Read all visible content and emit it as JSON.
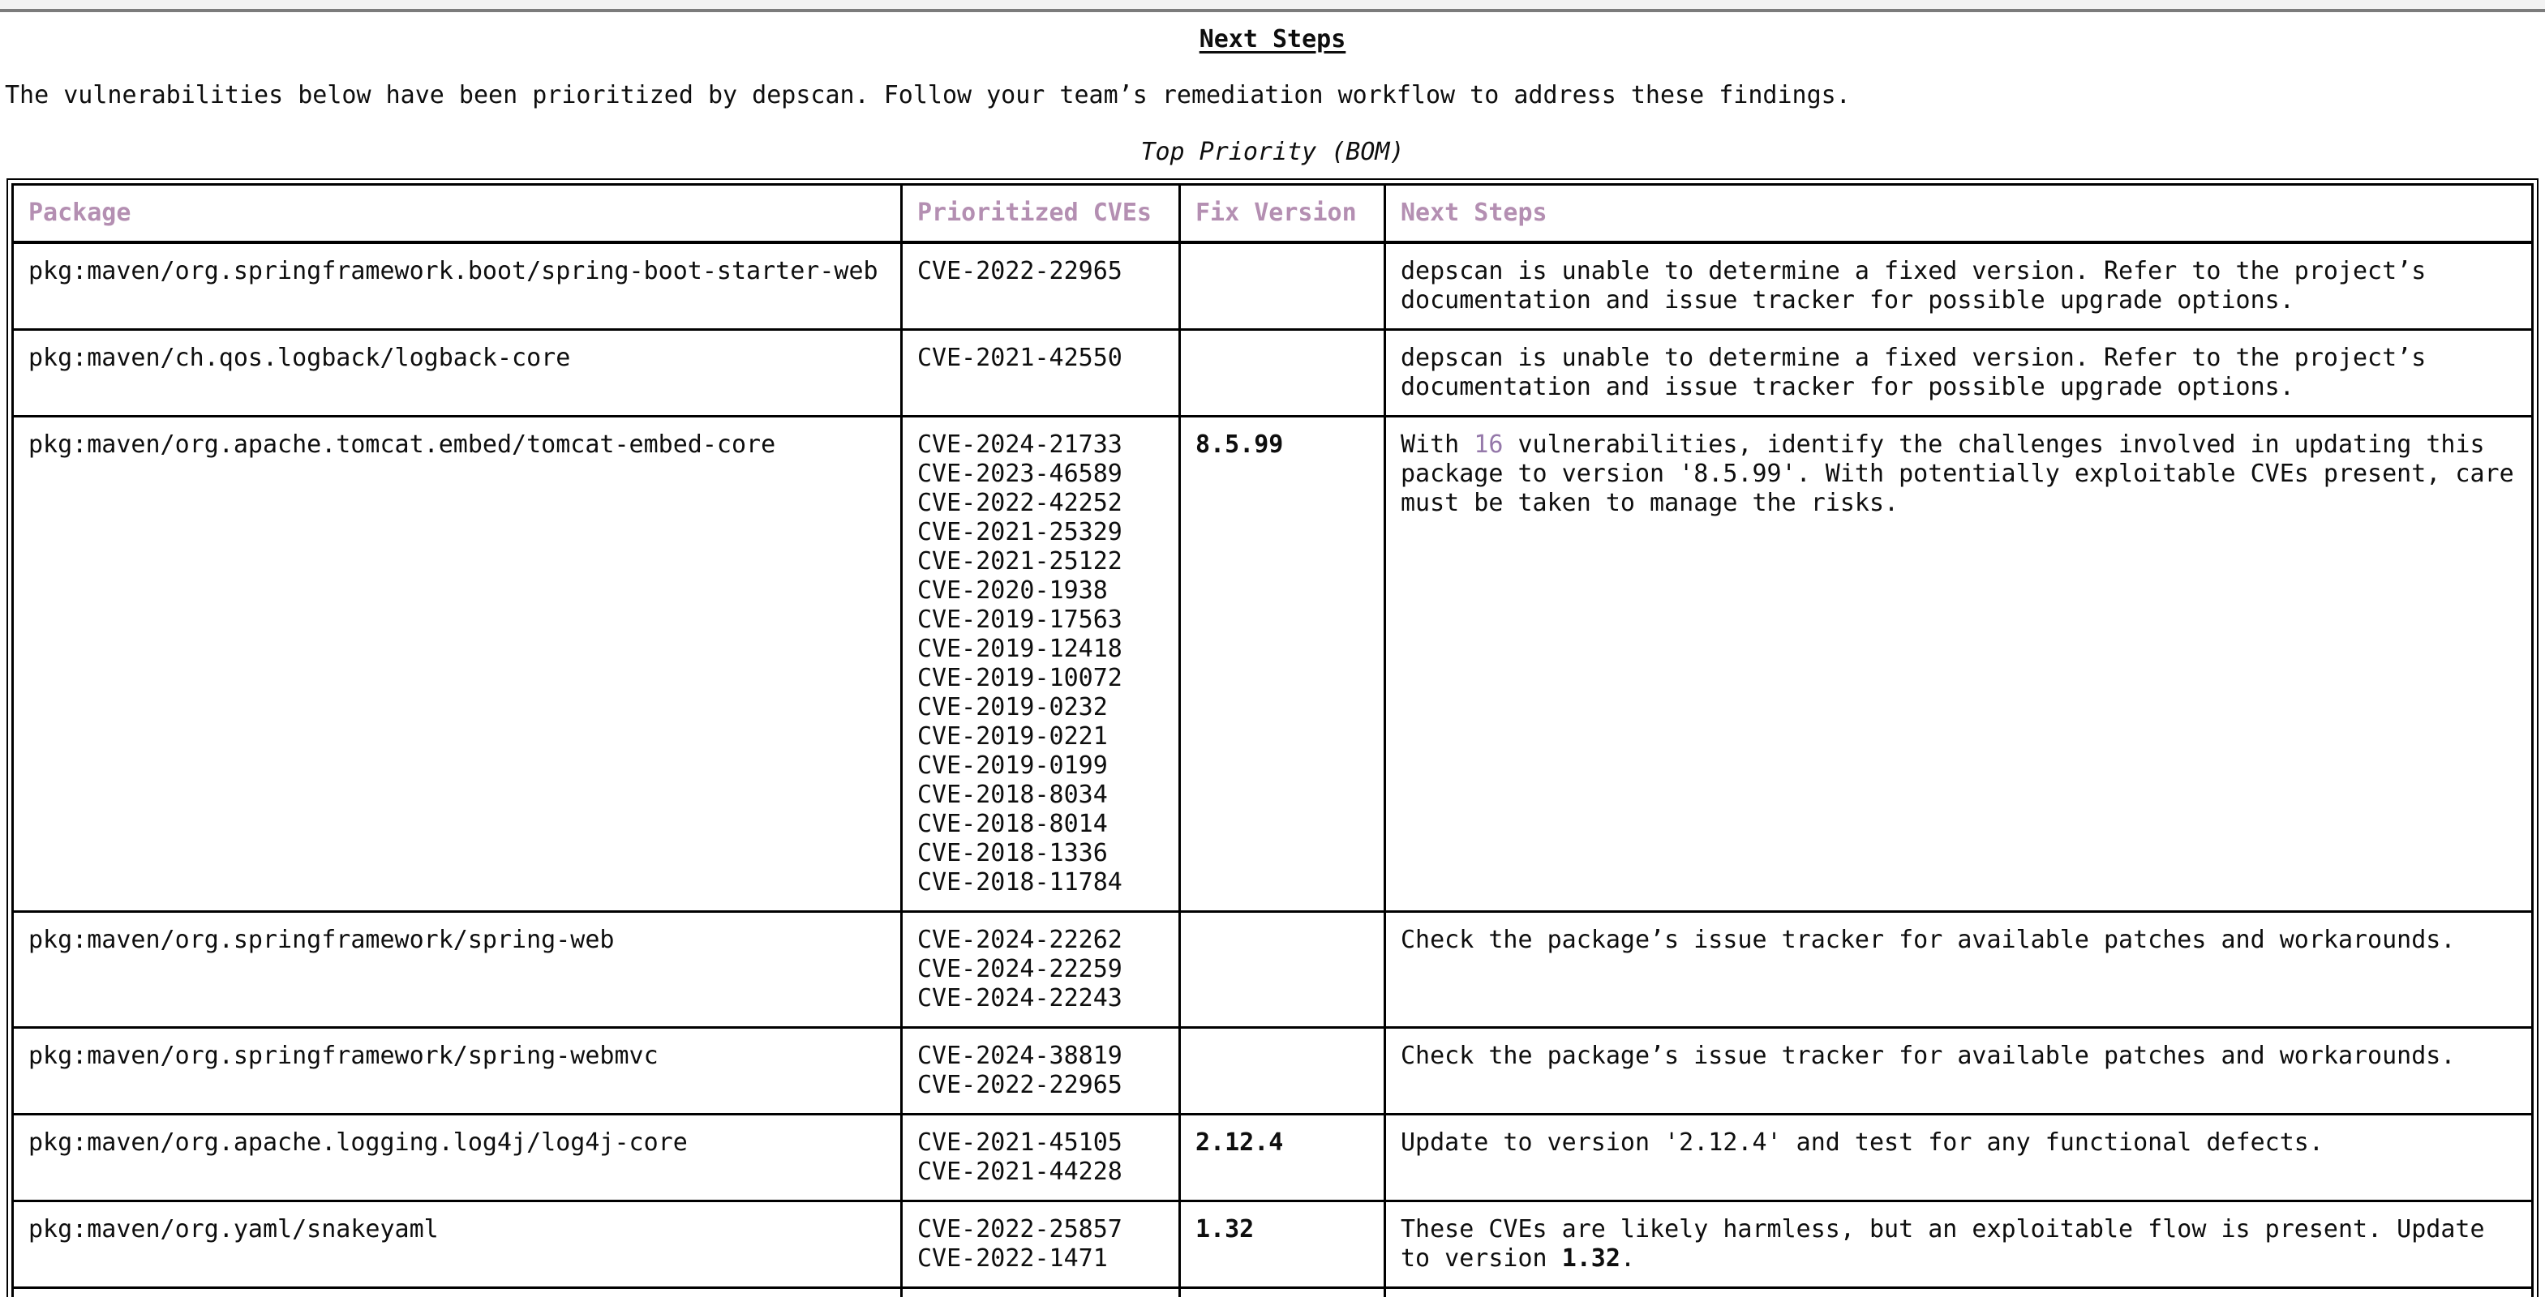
{
  "page": {
    "title": "Next Steps",
    "intro": "The vulnerabilities below have been prioritized by depscan. Follow your team’s remediation workflow to address these findings.",
    "table_caption": "Top Priority (BOM)"
  },
  "colors": {
    "header_text": "#b48fb2",
    "accent_text": "#9579aa",
    "top_strip": "#f2f2f2",
    "top_line": "#7c7c7c",
    "border": "#000000"
  },
  "table": {
    "headers": [
      "Package",
      "Prioritized CVEs",
      "Fix Version",
      "Next Steps"
    ],
    "rows": [
      {
        "package": "pkg:maven/org.springframework.boot/spring-boot-starter-web",
        "cves": [
          "CVE-2022-22965"
        ],
        "fix_version": "",
        "next_steps": [
          {
            "text": "depscan is unable to determine a fixed version. Refer to the project’s\ndocumentation and issue tracker for possible upgrade options."
          }
        ]
      },
      {
        "package": "pkg:maven/ch.qos.logback/logback-core",
        "cves": [
          "CVE-2021-42550"
        ],
        "fix_version": "",
        "next_steps": [
          {
            "text": "depscan is unable to determine a fixed version. Refer to the project’s\ndocumentation and issue tracker for possible upgrade options."
          }
        ]
      },
      {
        "package": "pkg:maven/org.apache.tomcat.embed/tomcat-embed-core",
        "cves": [
          "CVE-2024-21733",
          "CVE-2023-46589",
          "CVE-2022-42252",
          "CVE-2021-25329",
          "CVE-2021-25122",
          "CVE-2020-1938",
          "CVE-2019-17563",
          "CVE-2019-12418",
          "CVE-2019-10072",
          "CVE-2019-0232",
          "CVE-2019-0221",
          "CVE-2019-0199",
          "CVE-2018-8034",
          "CVE-2018-8014",
          "CVE-2018-1336",
          "CVE-2018-11784"
        ],
        "fix_version": "8.5.99",
        "next_steps": [
          {
            "text": "With "
          },
          {
            "text": "16",
            "style": "accent"
          },
          {
            "text": " vulnerabilities, identify the challenges involved in updating this\npackage to version '8.5.99'. With potentially exploitable CVEs present, care\nmust be taken to manage the risks."
          }
        ]
      },
      {
        "package": "pkg:maven/org.springframework/spring-web",
        "cves": [
          "CVE-2024-22262",
          "CVE-2024-22259",
          "CVE-2024-22243"
        ],
        "fix_version": "",
        "next_steps": [
          {
            "text": "Check the package’s issue tracker for available patches and workarounds."
          }
        ]
      },
      {
        "package": "pkg:maven/org.springframework/spring-webmvc",
        "cves": [
          "CVE-2024-38819",
          "CVE-2022-22965"
        ],
        "fix_version": "",
        "next_steps": [
          {
            "text": "Check the package’s issue tracker for available patches and workarounds."
          }
        ]
      },
      {
        "package": "pkg:maven/org.apache.logging.log4j/log4j-core",
        "cves": [
          "CVE-2021-45105",
          "CVE-2021-44228"
        ],
        "fix_version": "2.12.4",
        "next_steps": [
          {
            "text": "Update to version '2.12.4' and test for any functional defects."
          }
        ]
      },
      {
        "package": "pkg:maven/org.yaml/snakeyaml",
        "cves": [
          "CVE-2022-25857",
          "CVE-2022-1471"
        ],
        "fix_version": "1.32",
        "next_steps": [
          {
            "text": "These CVEs are likely harmless, but an exploitable flow is present. Update\nto version "
          },
          {
            "text": "1.32",
            "style": "bold"
          },
          {
            "text": "."
          }
        ]
      },
      {
        "package": "",
        "cves": [],
        "fix_version": "",
        "next_steps": [
          {
            "text": ""
          }
        ],
        "partial": true
      }
    ]
  }
}
